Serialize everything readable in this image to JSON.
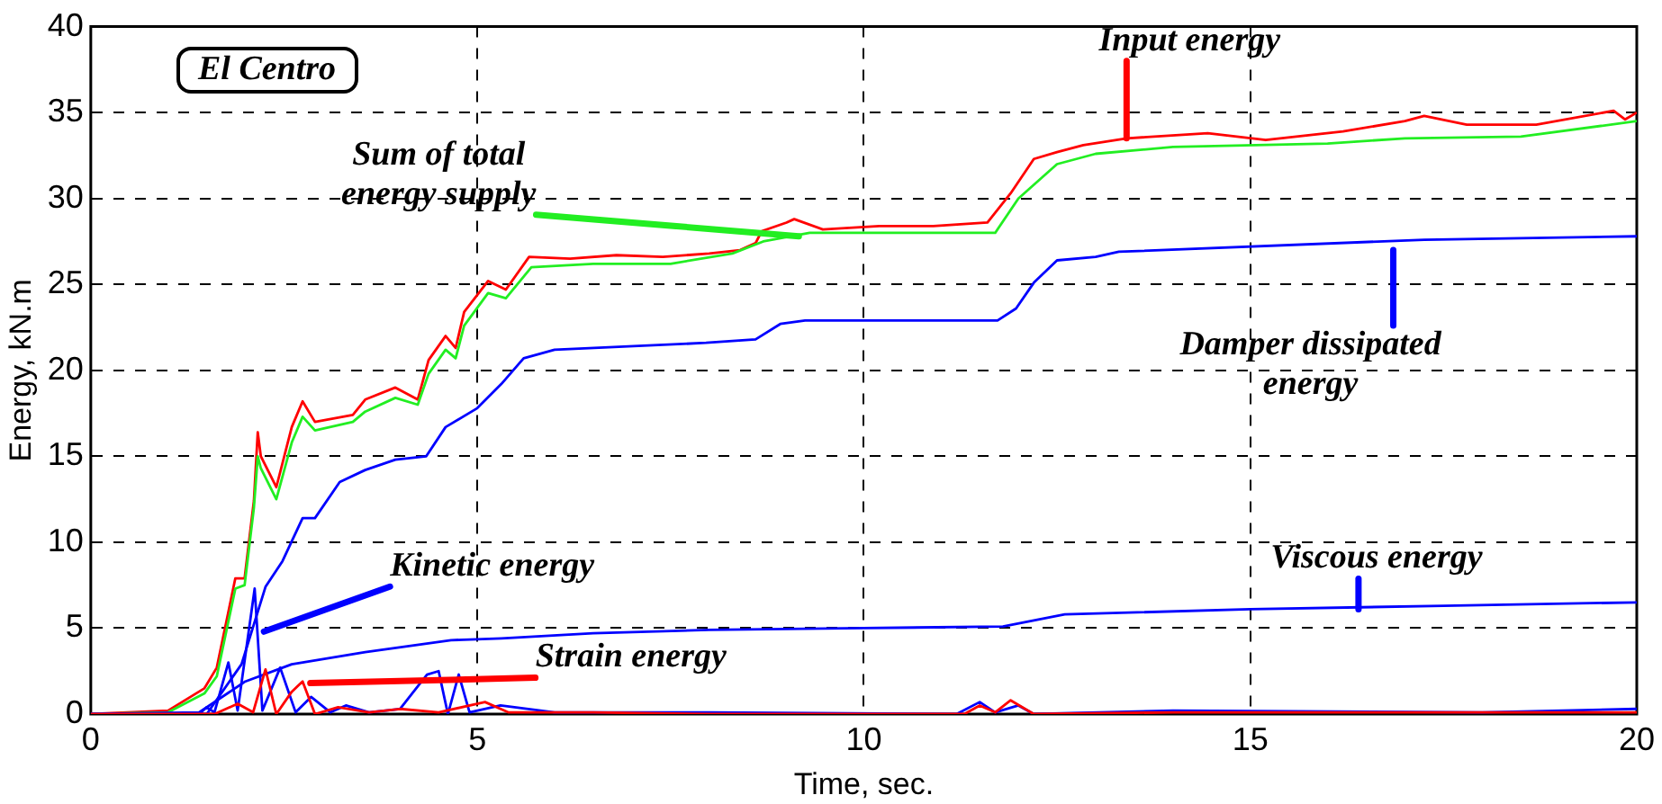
{
  "chart_data": {
    "type": "line",
    "title": "El Centro",
    "xlabel": "Time, sec.",
    "ylabel": "Energy, kN.m",
    "xlim": [
      0,
      20
    ],
    "xticks": [
      0,
      5,
      10,
      15,
      20
    ],
    "ylim": [
      0,
      40
    ],
    "yticks": [
      0,
      5,
      10,
      15,
      20,
      25,
      30,
      35,
      40
    ],
    "grid": true,
    "marker": "none",
    "line_style": "solid",
    "series": [
      {
        "color": "#ff0000",
        "x": [
          0,
          1,
          1.47,
          1.63,
          1.87,
          1.99,
          2.11,
          2.16,
          2.2,
          2.4,
          2.6,
          2.74,
          2.9,
          3.39,
          3.55,
          3.94,
          4.23,
          4.37,
          4.59,
          4.72,
          4.83,
          5.14,
          5.37,
          5.67,
          6.2,
          6.8,
          7.4,
          8.0,
          8.4,
          8.6,
          8.68,
          9.0,
          9.1,
          9.47,
          10.2,
          10.9,
          11.6,
          11.9,
          12.2,
          12.5,
          12.84,
          13.4,
          14.45,
          15.2,
          16.2,
          17.0,
          17.25,
          17.8,
          18.7,
          19.7,
          19.85,
          20
        ],
        "values": [
          0,
          0.2,
          1.5,
          2.7,
          7.9,
          7.9,
          12.4,
          16.4,
          15,
          13.2,
          16.7,
          18.2,
          17,
          17.4,
          18.3,
          19,
          18.3,
          20.6,
          22,
          21.3,
          23.4,
          25.2,
          24.7,
          26.6,
          26.5,
          26.7,
          26.6,
          26.8,
          27,
          27.4,
          28.1,
          28.6,
          28.8,
          28.2,
          28.4,
          28.4,
          28.6,
          30.3,
          32.3,
          32.7,
          33.1,
          33.5,
          33.8,
          33.4,
          33.9,
          34.5,
          34.8,
          34.3,
          34.3,
          35.1,
          34.6,
          35
        ]
      },
      {
        "color": "#22ee22",
        "x": [
          0,
          1,
          1.47,
          1.63,
          1.87,
          1.99,
          2.11,
          2.16,
          2.2,
          2.4,
          2.6,
          2.74,
          2.9,
          3.39,
          3.55,
          3.94,
          4.23,
          4.37,
          4.59,
          4.72,
          4.83,
          5.14,
          5.37,
          5.7,
          6.5,
          7.5,
          8.3,
          8.7,
          9.3,
          10.5,
          11.7,
          12.0,
          12.5,
          13.0,
          14.0,
          16.0,
          17.0,
          18.5,
          20
        ],
        "values": [
          0,
          0.1,
          1.2,
          2.2,
          7.3,
          7.5,
          12,
          15,
          14.3,
          12.5,
          15.8,
          17.3,
          16.5,
          17,
          17.6,
          18.4,
          18,
          19.8,
          21.2,
          20.7,
          22.6,
          24.5,
          24.2,
          26.0,
          26.2,
          26.2,
          26.8,
          27.5,
          28.0,
          28.0,
          28.0,
          30.0,
          32.0,
          32.6,
          33.0,
          33.2,
          33.5,
          33.6,
          34.5
        ]
      },
      {
        "color": "#0000ff",
        "x": [
          0,
          1.5,
          1.95,
          2.26,
          2.48,
          2.74,
          2.9,
          3.22,
          3.55,
          3.94,
          4.34,
          4.59,
          5.0,
          5.31,
          5.6,
          6.0,
          7.96,
          8.6,
          8.92,
          9.24,
          11.73,
          11.97,
          12.2,
          12.5,
          13.0,
          13.3,
          17.25,
          20
        ],
        "values": [
          0,
          0,
          2.9,
          7.4,
          8.9,
          11.4,
          11.4,
          13.5,
          14.2,
          14.8,
          15,
          16.7,
          17.8,
          19.2,
          20.7,
          21.2,
          21.6,
          21.8,
          22.7,
          22.9,
          22.9,
          23.6,
          25.1,
          26.4,
          26.6,
          26.9,
          27.6,
          27.8
        ]
      },
      {
        "color": "#0000ff",
        "x": [
          0,
          1.4,
          2.0,
          2.6,
          3.55,
          4.66,
          5.31,
          6.5,
          8.0,
          10.0,
          11.8,
          12.6,
          15.0,
          17.5,
          20
        ],
        "values": [
          0,
          0.1,
          1.9,
          2.9,
          3.6,
          4.3,
          4.4,
          4.7,
          4.9,
          5.0,
          5.1,
          5.8,
          6.1,
          6.3,
          6.5
        ]
      },
      {
        "color": "#0000ff",
        "x": [
          0,
          1.4,
          1.5,
          1.6,
          1.78,
          1.9,
          2.12,
          2.22,
          2.45,
          2.65,
          2.85,
          3.1,
          3.3,
          3.6,
          4.0,
          4.35,
          4.5,
          4.62,
          4.76,
          4.9,
          5.3,
          6.0,
          8.0,
          11.2,
          11.5,
          11.7,
          12.0,
          12.2,
          14.0,
          18.0,
          20
        ],
        "values": [
          0,
          0,
          0.4,
          0.1,
          3.0,
          0.2,
          7.3,
          0.2,
          2.7,
          0.1,
          1.0,
          0.1,
          0.5,
          0.1,
          0.3,
          2.3,
          2.5,
          0,
          2.3,
          0.1,
          0.5,
          0.1,
          0.1,
          0,
          0.7,
          0.1,
          0.5,
          0,
          0.2,
          0.1,
          0.3
        ]
      },
      {
        "color": "#ff0000",
        "x": [
          0,
          1.6,
          1.9,
          2.1,
          2.26,
          2.4,
          2.6,
          2.74,
          2.9,
          3.2,
          3.6,
          4.0,
          4.5,
          5.1,
          5.4,
          6.5,
          8.0,
          11.3,
          11.5,
          11.7,
          11.9,
          12.2,
          14.0,
          20
        ],
        "values": [
          0,
          0,
          0.6,
          0.1,
          2.6,
          0,
          1.3,
          1.9,
          0,
          0.4,
          0.1,
          0.3,
          0.1,
          0.7,
          0.1,
          0.1,
          0,
          0,
          0.5,
          0.1,
          0.8,
          0,
          0.1,
          0.1
        ]
      }
    ],
    "annotations": [
      {
        "text": "Input energy",
        "x": 13.4,
        "y": 33.5
      },
      {
        "text": "Sum of total energy supply",
        "x": 9.16,
        "y": 27.8
      },
      {
        "text": "Damper dissipated energy",
        "x": 16.85,
        "y": 27
      },
      {
        "text": "Viscous energy",
        "x": 16.4,
        "y": 6.1
      },
      {
        "text": "Kinetic energy",
        "x": 2.24,
        "y": 4.8
      },
      {
        "text": "Strain energy",
        "x": 2.84,
        "y": 1.8
      }
    ]
  }
}
